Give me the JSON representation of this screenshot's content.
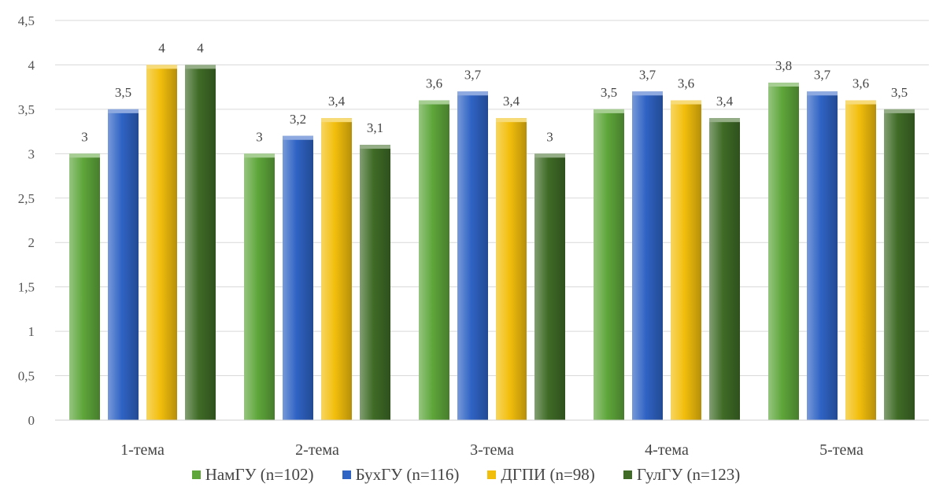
{
  "chart_data": {
    "type": "bar",
    "title": "",
    "xlabel": "",
    "ylabel": "",
    "categories": [
      "1-тема",
      "2-тема",
      "3-тема",
      "4-тема",
      "5-тема"
    ],
    "series": [
      {
        "name": "НамГУ (n=102)",
        "values": [
          3,
          3,
          3.6,
          3.5,
          3.8
        ],
        "labels": [
          "3",
          "3",
          "3,6",
          "3,5",
          "3,8"
        ],
        "color": "#5ea63a"
      },
      {
        "name": "БухГУ (n=116)",
        "values": [
          3.5,
          3.2,
          3.7,
          3.7,
          3.7
        ],
        "labels": [
          "3,5",
          "3,2",
          "3,7",
          "3,7",
          "3,7"
        ],
        "color": "#2f63c4"
      },
      {
        "name": "ДГПИ (n=98)",
        "values": [
          4,
          3.4,
          3.4,
          3.6,
          3.6
        ],
        "labels": [
          "4",
          "3,4",
          "3,4",
          "3,6",
          "3,6"
        ],
        "color": "#f2be0c"
      },
      {
        "name": "ГулГУ (n=123)",
        "values": [
          4,
          3.1,
          3,
          3.4,
          3.5
        ],
        "labels": [
          "4",
          "3,1",
          "3",
          "3,4",
          "3,5"
        ],
        "color": "#3f6b26"
      }
    ],
    "ylim": [
      0,
      4.5
    ],
    "yticks": [
      0,
      0.5,
      1,
      1.5,
      2,
      2.5,
      3,
      3.5,
      4,
      4.5
    ],
    "ytick_labels": [
      "0",
      "0,5",
      "1",
      "1,5",
      "2",
      "2,5",
      "3",
      "3,5",
      "4",
      "4,5"
    ],
    "grid": true,
    "legend": "bottom"
  }
}
